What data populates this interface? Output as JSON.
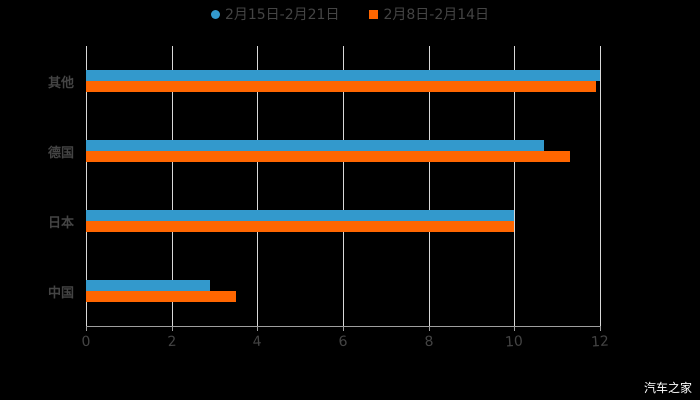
{
  "chart_data": {
    "type": "bar",
    "orientation": "horizontal",
    "title": "",
    "xlabel": "",
    "ylabel": "",
    "categories": [
      "其他",
      "德国",
      "日本",
      "中国"
    ],
    "series": [
      {
        "name": "2月15日-2月21日",
        "color": "#3399cc",
        "values": [
          12.0,
          10.7,
          10.0,
          2.9
        ]
      },
      {
        "name": "2月8日-2月14日",
        "color": "#ff6600",
        "values": [
          11.9,
          11.3,
          10.0,
          3.5
        ]
      }
    ],
    "xlim": [
      0,
      12
    ],
    "xticks": [
      "0",
      "2",
      "4",
      "6",
      "8",
      "10",
      "12"
    ],
    "grid": true,
    "legend_position": "top"
  },
  "legend": {
    "items": [
      {
        "label": "2月15日-2月21日",
        "color": "#3399cc"
      },
      {
        "label": "2月8日-2月14日",
        "color": "#ff6600"
      }
    ]
  },
  "watermark": "汽车之家"
}
